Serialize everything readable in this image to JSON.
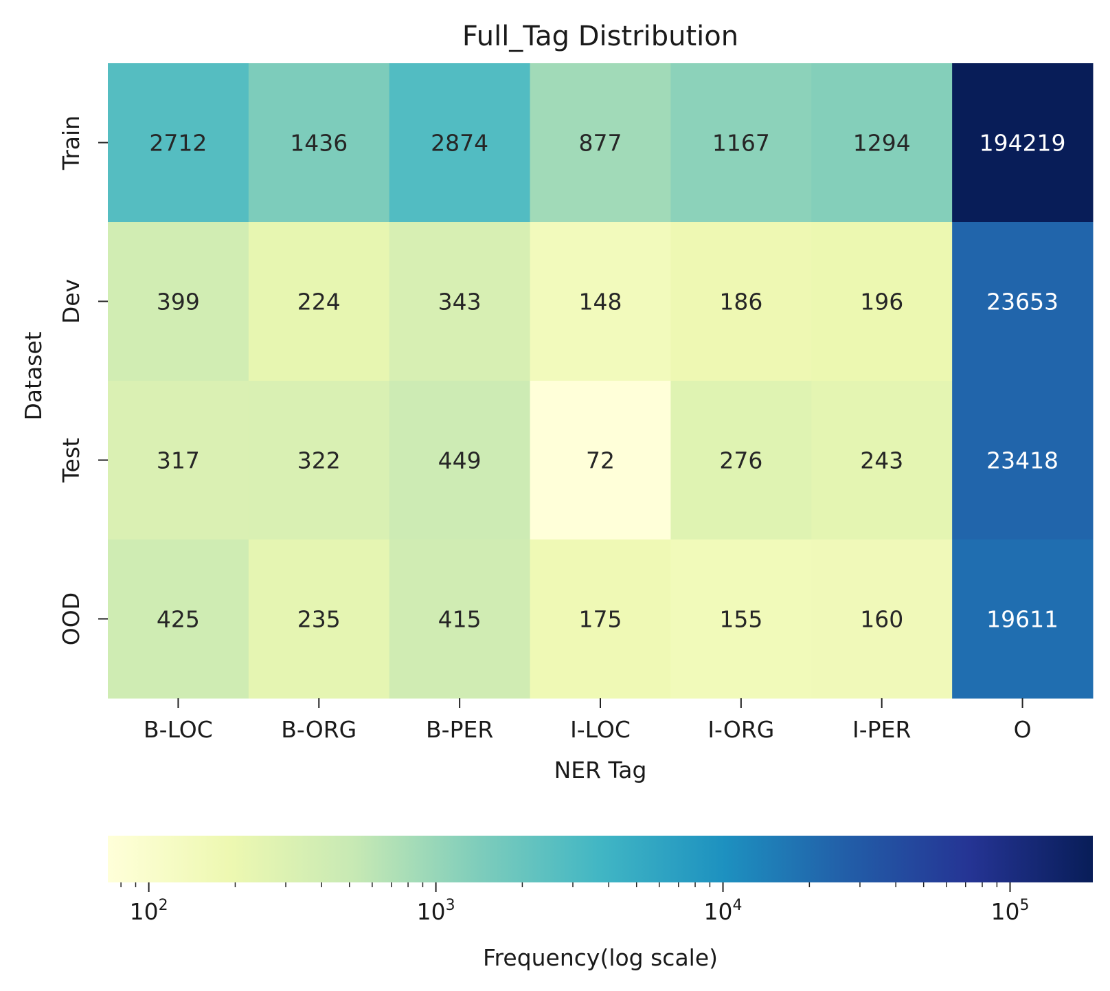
{
  "chart_data": {
    "type": "heatmap",
    "title": "Full_Tag Distribution",
    "xlabel": "NER Tag",
    "ylabel": "Dataset",
    "x_categories": [
      "B-LOC",
      "B-ORG",
      "B-PER",
      "I-LOC",
      "I-ORG",
      "I-PER",
      "O"
    ],
    "y_categories": [
      "Train",
      "Dev",
      "Test",
      "OOD"
    ],
    "values": [
      [
        2712,
        1436,
        2874,
        877,
        1167,
        1294,
        194219
      ],
      [
        399,
        224,
        343,
        148,
        186,
        196,
        23653
      ],
      [
        317,
        322,
        449,
        72,
        276,
        243,
        23418
      ],
      [
        425,
        235,
        415,
        175,
        155,
        160,
        19611
      ]
    ],
    "colorbar": {
      "label": "Frequency(log scale)",
      "scale": "log",
      "range": [
        72,
        194219
      ],
      "colormap": "YlGnBu",
      "orientation": "horizontal",
      "ticks": [
        {
          "base": "10",
          "exp": "2",
          "value": 100
        },
        {
          "base": "10",
          "exp": "3",
          "value": 1000
        },
        {
          "base": "10",
          "exp": "4",
          "value": 10000
        },
        {
          "base": "10",
          "exp": "5",
          "value": 100000
        }
      ]
    },
    "colors": {
      "colormap_stops": [
        "#ffffd9",
        "#edf8b1",
        "#c7e9b4",
        "#7fcdbb",
        "#41b6c4",
        "#1d91c0",
        "#225ea8",
        "#253494",
        "#081d58"
      ],
      "text_dark": "#262626",
      "text_light": "#ffffff"
    }
  }
}
